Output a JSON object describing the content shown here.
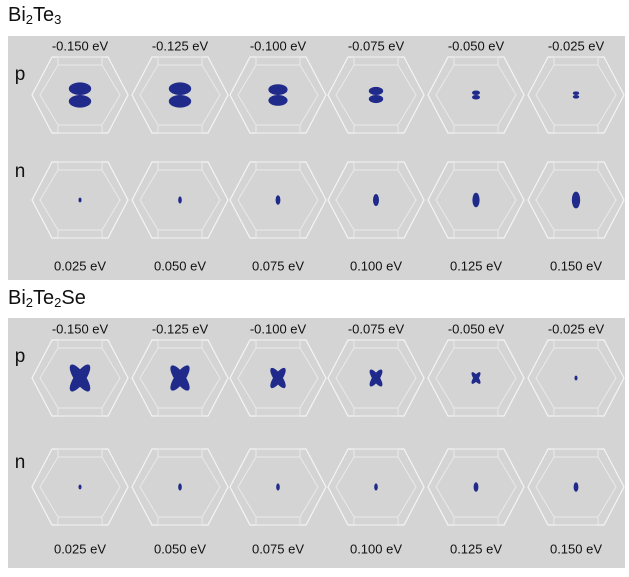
{
  "panels": [
    {
      "title_parts": [
        "Bi",
        "2",
        "Te",
        "3"
      ],
      "rows": [
        {
          "label": "p",
          "energies": [
            "-0.150 eV",
            "-0.125 eV",
            "-0.100 eV",
            "-0.075 eV",
            "-0.050 eV",
            "-0.025 eV"
          ]
        },
        {
          "label": "n",
          "energies": [
            "0.025 eV",
            "0.050 eV",
            "0.075 eV",
            "0.100 eV",
            "0.125 eV",
            "0.150 eV"
          ]
        }
      ]
    },
    {
      "title_parts": [
        "Bi",
        "2",
        "Te",
        "2",
        "Se"
      ],
      "rows": [
        {
          "label": "p",
          "energies": [
            "-0.150 eV",
            "-0.125 eV",
            "-0.100 eV",
            "-0.075 eV",
            "-0.050 eV",
            "-0.025 eV"
          ]
        },
        {
          "label": "n",
          "energies": [
            "0.025 eV",
            "0.050 eV",
            "0.075 eV",
            "0.100 eV",
            "0.125 eV",
            "0.150 eV"
          ]
        }
      ]
    }
  ]
}
